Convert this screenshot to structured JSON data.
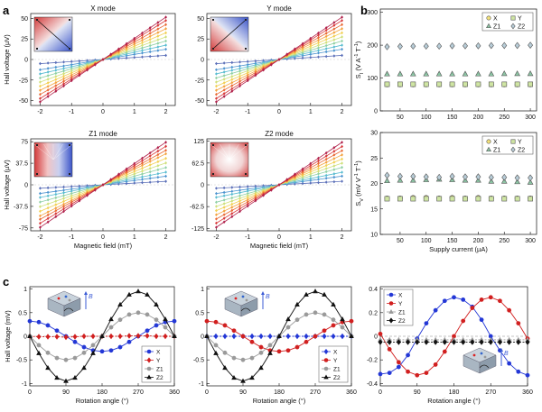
{
  "panel_labels": [
    "a",
    "b",
    "c"
  ],
  "colors": {
    "hall_ramp": [
      "#5b6fb8",
      "#4b93cf",
      "#58bcd0",
      "#8fd0a4",
      "#cfe07a",
      "#f2d052",
      "#f4a23e",
      "#e96a35",
      "#d8393a",
      "#b01f4a"
    ],
    "X": "#2337d6",
    "Y": "#d11f1f",
    "Z1": "#9a9a9a",
    "Z2": "#101010",
    "b_X": "#f3e27a",
    "b_Y": "#cfe5a3",
    "b_Z1": "#8cc5a4",
    "b_Z2": "#b8cdd8"
  },
  "chart_data": [
    {
      "panel": "a",
      "id": "a1",
      "type": "line",
      "title": "X mode",
      "ylabel": "Hall voltage (µV)",
      "xlabel": "",
      "xlim": [
        -2.3,
        2.3
      ],
      "ylim": [
        -56,
        56
      ],
      "xticks": [
        -2,
        -1,
        0,
        1,
        2
      ],
      "yticks": [
        -50,
        -25,
        0,
        25,
        50
      ],
      "ytick_labels": [
        "-50",
        "-25",
        "0",
        "25",
        "50"
      ],
      "x": [
        -2,
        -1.75,
        -1.5,
        -1.25,
        -1,
        -0.75,
        -0.5,
        -0.25,
        0,
        0.25,
        0.5,
        0.75,
        1,
        1.25,
        1.5,
        1.75,
        2
      ],
      "slopes": [
        2.5,
        6.25,
        8.75,
        11.25,
        13.75,
        16.25,
        18.75,
        21.25,
        23.75,
        25.75
      ],
      "inset": "x-mode"
    },
    {
      "panel": "a",
      "id": "a2",
      "type": "line",
      "title": "Y mode",
      "ylabel": "",
      "xlabel": "",
      "xlim": [
        -2.3,
        2.3
      ],
      "ylim": [
        -56,
        56
      ],
      "xticks": [
        -2,
        -1,
        0,
        1,
        2
      ],
      "yticks": [
        -50,
        -25,
        0,
        25,
        50
      ],
      "ytick_labels": [
        "-50",
        "-25",
        "0",
        "25",
        "50"
      ],
      "x": [
        -2,
        -1.75,
        -1.5,
        -1.25,
        -1,
        -0.75,
        -0.5,
        -0.25,
        0,
        0.25,
        0.5,
        0.75,
        1,
        1.25,
        1.5,
        1.75,
        2
      ],
      "slopes": [
        2.5,
        6.25,
        8.75,
        11.25,
        13.75,
        16.25,
        18.75,
        21.25,
        23.75,
        25.75
      ],
      "inset": "y-mode"
    },
    {
      "panel": "a",
      "id": "a3",
      "type": "line",
      "title": "Z1 mode",
      "ylabel": "Hall voltage (µV)",
      "xlabel": "Magnetic field (mT)",
      "xlim": [
        -2.3,
        2.3
      ],
      "ylim": [
        -80,
        80
      ],
      "xticks": [
        -2,
        -1,
        0,
        1,
        2
      ],
      "yticks": [
        -75,
        -37.5,
        0,
        37.5,
        75
      ],
      "ytick_labels": [
        "-75",
        "-37.5",
        "0",
        "37.5",
        "75"
      ],
      "x": [
        -2,
        -1.75,
        -1.5,
        -1.25,
        -1,
        -0.75,
        -0.5,
        -0.25,
        0,
        0.25,
        0.5,
        0.75,
        1,
        1.25,
        1.5,
        1.75,
        2
      ],
      "slopes": [
        3,
        7.5,
        11,
        15,
        19,
        23,
        27,
        30,
        33.5,
        37
      ],
      "inset": "z1-mode"
    },
    {
      "panel": "a",
      "id": "a4",
      "type": "line",
      "title": "Z2 mode",
      "ylabel": "",
      "xlabel": "Magnetic field (mT)",
      "xlim": [
        -2.3,
        2.3
      ],
      "ylim": [
        -132,
        132
      ],
      "xticks": [
        -2,
        -1,
        0,
        1,
        2
      ],
      "yticks": [
        -125,
        -62.5,
        0,
        62.5,
        125
      ],
      "ytick_labels": [
        "-125",
        "-62.5",
        "0",
        "62.5",
        "125"
      ],
      "x": [
        -2,
        -1.75,
        -1.5,
        -1.25,
        -1,
        -0.75,
        -0.5,
        -0.25,
        0,
        0.25,
        0.5,
        0.75,
        1,
        1.25,
        1.5,
        1.75,
        2
      ],
      "slopes": [
        5,
        12.5,
        18,
        25,
        31,
        37,
        43,
        49,
        55,
        61
      ],
      "inset": "z2-mode"
    },
    {
      "panel": "b",
      "id": "b1",
      "type": "scatter",
      "ylabel_main": "S",
      "ylabel_sub": "I",
      "ylabel_units": " (V A",
      "ylabel_exp1": "-1",
      "ylabel_mid": " T",
      "ylabel_exp2": "-1",
      "ylabel_close": ")",
      "xlabel": "",
      "xlim": [
        12,
        312
      ],
      "ylim": [
        0,
        310
      ],
      "xticks": [
        50,
        100,
        150,
        200,
        250,
        300
      ],
      "yticks": [
        0,
        100,
        200,
        300
      ],
      "ytick_labels": [
        "0",
        "100",
        "200",
        "300"
      ],
      "x": [
        25,
        50,
        75,
        100,
        125,
        150,
        175,
        200,
        225,
        250,
        275,
        300
      ],
      "legend": [
        "X",
        "Y",
        "Z1",
        "Z2"
      ],
      "legend_position": "top-right",
      "series": [
        {
          "name": "X",
          "marker": "circle",
          "values": [
            80,
            80,
            80,
            80,
            80,
            80,
            80,
            80,
            80,
            80,
            80,
            80
          ]
        },
        {
          "name": "Y",
          "marker": "square",
          "values": [
            81,
            81,
            81,
            81,
            81,
            81,
            81,
            81,
            81,
            81,
            81,
            81
          ]
        },
        {
          "name": "Z1",
          "marker": "triangle",
          "values": [
            112,
            112,
            112,
            112,
            112,
            112,
            112,
            112,
            112,
            113,
            113,
            113
          ]
        },
        {
          "name": "Z2",
          "marker": "diamond",
          "values": [
            195,
            196,
            197,
            197,
            197,
            198,
            198,
            198,
            199,
            199,
            199,
            200
          ]
        }
      ]
    },
    {
      "panel": "b",
      "id": "b2",
      "type": "scatter",
      "ylabel_main": "S",
      "ylabel_sub": "V",
      "ylabel_units": " (mV V",
      "ylabel_exp1": "-1",
      "ylabel_mid": " T",
      "ylabel_exp2": "-1",
      "ylabel_close": ")",
      "xlabel": "Supply current (µA)",
      "xlim": [
        12,
        312
      ],
      "ylim": [
        10,
        30
      ],
      "xticks": [
        50,
        100,
        150,
        200,
        250,
        300
      ],
      "yticks": [
        10,
        15,
        20,
        25,
        30
      ],
      "ytick_labels": [
        "10",
        "15",
        "20",
        "25",
        "30"
      ],
      "x": [
        25,
        50,
        75,
        100,
        125,
        150,
        175,
        200,
        225,
        250,
        275,
        300
      ],
      "legend": [
        "X",
        "Y",
        "Z1",
        "Z2"
      ],
      "legend_position": "top-right",
      "series": [
        {
          "name": "X",
          "marker": "circle",
          "values": [
            17.1,
            17.1,
            17.2,
            17.2,
            17.1,
            17.2,
            17.1,
            17.2,
            17.1,
            17.1,
            17.1,
            17.1
          ]
        },
        {
          "name": "Y",
          "marker": "square",
          "values": [
            17.0,
            17.0,
            17.0,
            17.0,
            17.0,
            17.0,
            17.0,
            17.0,
            17.0,
            17.0,
            17.0,
            17.0
          ]
        },
        {
          "name": "Z1",
          "marker": "triangle",
          "values": [
            20.5,
            20.6,
            20.6,
            20.7,
            20.8,
            20.7,
            20.6,
            20.6,
            20.4,
            20.4,
            20.3,
            20.2
          ]
        },
        {
          "name": "Z2",
          "marker": "diamond",
          "values": [
            21.6,
            21.4,
            21.4,
            21.3,
            21.2,
            21.4,
            21.3,
            21.3,
            21.2,
            21.2,
            21.1,
            21.1
          ]
        }
      ]
    },
    {
      "panel": "c",
      "id": "c1",
      "type": "line",
      "ylabel": "Hall voltage (mV)",
      "xlabel": "Rotation angle (°)",
      "xlim": [
        0,
        360
      ],
      "ylim": [
        -1.05,
        1.05
      ],
      "xticks": [
        0,
        90,
        180,
        270,
        360
      ],
      "yticks": [
        -1,
        -0.5,
        0,
        0.5,
        1
      ],
      "ytick_labels": [
        "-1",
        "-0.5",
        "0",
        "0.5",
        "1"
      ],
      "x": [
        0,
        22.5,
        45,
        67.5,
        90,
        112.5,
        135,
        157.5,
        180,
        202.5,
        225,
        247.5,
        270,
        292.5,
        315,
        337.5,
        360
      ],
      "legend": [
        "X",
        "Y",
        "Z1",
        "Z2"
      ],
      "legend_position": "bottom-right",
      "inset": "device-b-field",
      "series": [
        {
          "name": "X",
          "marker": "circle",
          "values": [
            0.32,
            0.3,
            0.23,
            0.12,
            0.0,
            -0.12,
            -0.23,
            -0.3,
            -0.32,
            -0.3,
            -0.23,
            -0.12,
            0.0,
            0.12,
            0.23,
            0.3,
            0.32
          ]
        },
        {
          "name": "Y",
          "marker": "diamond",
          "values": [
            0.0,
            -0.01,
            -0.01,
            -0.01,
            -0.02,
            -0.01,
            0.0,
            0.0,
            0.0,
            0.0,
            0.0,
            0.01,
            0.01,
            0.01,
            0.0,
            0.0,
            0.0
          ]
        },
        {
          "name": "Z1",
          "marker": "circle",
          "values": [
            0.0,
            -0.19,
            -0.35,
            -0.46,
            -0.5,
            -0.46,
            -0.35,
            -0.19,
            0.0,
            0.19,
            0.35,
            0.46,
            0.5,
            0.46,
            0.35,
            0.19,
            0.0
          ]
        },
        {
          "name": "Z2",
          "marker": "triangle",
          "values": [
            0.0,
            -0.36,
            -0.67,
            -0.88,
            -0.95,
            -0.88,
            -0.67,
            -0.36,
            0.0,
            0.36,
            0.67,
            0.88,
            0.95,
            0.88,
            0.67,
            0.36,
            0.0
          ]
        }
      ]
    },
    {
      "panel": "c",
      "id": "c2",
      "type": "line",
      "ylabel": "",
      "xlabel": "Rotation angle (°)",
      "xlim": [
        0,
        360
      ],
      "ylim": [
        -1.05,
        1.05
      ],
      "xticks": [
        0,
        90,
        180,
        270,
        360
      ],
      "yticks": [
        -1,
        -0.5,
        0,
        0.5,
        1
      ],
      "ytick_labels": [
        "-1",
        "-0.5",
        "0",
        "0.5",
        "1"
      ],
      "x": [
        0,
        22.5,
        45,
        67.5,
        90,
        112.5,
        135,
        157.5,
        180,
        202.5,
        225,
        247.5,
        270,
        292.5,
        315,
        337.5,
        360
      ],
      "legend": [
        "X",
        "Y",
        "Z1",
        "Z2"
      ],
      "legend_position": "bottom-right",
      "inset": "device-b-field-rotated",
      "series": [
        {
          "name": "X",
          "marker": "diamond",
          "values": [
            0.0,
            0.0,
            0.0,
            0.0,
            0.0,
            0.0,
            0.0,
            0.0,
            0.0,
            0.0,
            0.0,
            0.0,
            0.0,
            0.0,
            0.0,
            0.0,
            0.0
          ]
        },
        {
          "name": "Y",
          "marker": "circle",
          "values": [
            0.32,
            0.3,
            0.23,
            0.12,
            0.0,
            -0.12,
            -0.23,
            -0.3,
            -0.32,
            -0.3,
            -0.23,
            -0.12,
            0.0,
            0.12,
            0.23,
            0.3,
            0.32
          ]
        },
        {
          "name": "Z1",
          "marker": "circle",
          "values": [
            0.0,
            -0.19,
            -0.35,
            -0.46,
            -0.5,
            -0.46,
            -0.35,
            -0.19,
            0.0,
            0.19,
            0.35,
            0.46,
            0.5,
            0.46,
            0.35,
            0.19,
            0.0
          ]
        },
        {
          "name": "Z2",
          "marker": "triangle",
          "values": [
            0.0,
            -0.36,
            -0.67,
            -0.88,
            -0.95,
            -0.88,
            -0.67,
            -0.36,
            0.0,
            0.36,
            0.67,
            0.88,
            0.95,
            0.88,
            0.67,
            0.36,
            0.0
          ]
        }
      ]
    },
    {
      "panel": "c",
      "id": "c3",
      "type": "line",
      "ylabel": "",
      "xlabel": "Rotation angle (°)",
      "xlim": [
        0,
        360
      ],
      "ylim": [
        -0.42,
        0.42
      ],
      "xticks": [
        0,
        90,
        180,
        270,
        360
      ],
      "yticks": [
        -0.4,
        -0.2,
        0,
        0.2,
        0.4
      ],
      "ytick_labels": [
        "-0.4",
        "-0.2",
        "0",
        "0.2",
        "0.4"
      ],
      "x": [
        0,
        22.5,
        45,
        67.5,
        90,
        112.5,
        135,
        157.5,
        180,
        202.5,
        225,
        247.5,
        270,
        292.5,
        315,
        337.5,
        360
      ],
      "legend": [
        "X",
        "Y",
        "Z1",
        "Z2"
      ],
      "legend_position": "top-left",
      "inset": "device-b-field-z",
      "series": [
        {
          "name": "X",
          "marker": "circle",
          "values": [
            -0.32,
            -0.31,
            -0.26,
            -0.16,
            -0.02,
            0.11,
            0.22,
            0.3,
            0.33,
            0.31,
            0.25,
            0.14,
            0.0,
            -0.12,
            -0.23,
            -0.3,
            -0.33
          ]
        },
        {
          "name": "Y",
          "marker": "circle",
          "values": [
            0.02,
            -0.11,
            -0.22,
            -0.3,
            -0.33,
            -0.31,
            -0.24,
            -0.13,
            0.0,
            0.13,
            0.24,
            0.31,
            0.33,
            0.3,
            0.22,
            0.11,
            -0.02
          ]
        },
        {
          "name": "Z1",
          "marker": "triangle",
          "values": [
            -0.03,
            -0.03,
            -0.03,
            -0.03,
            -0.03,
            -0.03,
            -0.03,
            -0.03,
            -0.03,
            -0.03,
            -0.03,
            -0.03,
            -0.03,
            -0.03,
            -0.03,
            -0.03,
            -0.03
          ]
        },
        {
          "name": "Z2",
          "marker": "diamond",
          "values": [
            -0.05,
            -0.05,
            -0.05,
            -0.05,
            -0.05,
            -0.05,
            -0.05,
            -0.05,
            -0.05,
            -0.05,
            -0.05,
            -0.05,
            -0.05,
            -0.05,
            -0.05,
            -0.05,
            -0.05
          ]
        }
      ]
    }
  ],
  "insets": {
    "b_field_label": "B"
  }
}
